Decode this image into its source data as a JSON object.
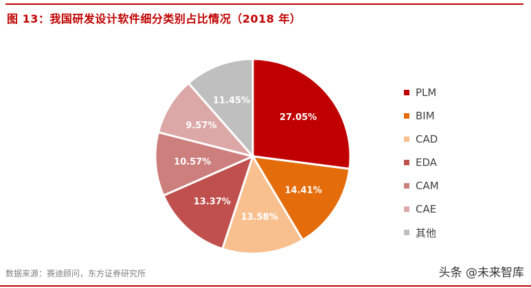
{
  "header": {
    "title": "图 13：我国研发设计软件细分类别占比情况（2018 年）"
  },
  "footer": {
    "source": "数据来源：赛迪顾问，东方证券研究所",
    "watermark": "头条 @未来智库"
  },
  "colors": {
    "accent": "#c00000",
    "PLM": "#c00000",
    "BIM": "#e46c0a",
    "CAD": "#f9c08f",
    "EDA": "#c0504d",
    "CAM": "#cd7f7d",
    "CAE": "#dba8a7",
    "其他": "#bfbfbf"
  },
  "legend": [
    {
      "label": "PLM",
      "color": "#c00000"
    },
    {
      "label": "BIM",
      "color": "#e46c0a"
    },
    {
      "label": "CAD",
      "color": "#f9c08f"
    },
    {
      "label": "EDA",
      "color": "#c0504d"
    },
    {
      "label": "CAM",
      "color": "#cd7f7d"
    },
    {
      "label": "CAE",
      "color": "#dba8a7"
    },
    {
      "label": "其他",
      "color": "#bfbfbf"
    }
  ],
  "chart_data": {
    "type": "pie",
    "title": "图 13：我国研发设计软件细分类别占比情况（2018 年）",
    "categories": [
      "PLM",
      "BIM",
      "CAD",
      "EDA",
      "CAM",
      "CAE",
      "其他"
    ],
    "values": [
      27.05,
      14.41,
      13.58,
      13.37,
      10.57,
      9.57,
      11.45
    ],
    "labels": [
      "27.05%",
      "14.41%",
      "13.58%",
      "13.37%",
      "10.57%",
      "9.57%",
      "11.45%"
    ],
    "colors": [
      "#c00000",
      "#e46c0a",
      "#f9c08f",
      "#c0504d",
      "#cd7f7d",
      "#dba8a7",
      "#bfbfbf"
    ],
    "start_angle_deg": 0,
    "direction": "clockwise",
    "legend_position": "right",
    "source": "数据来源：赛迪顾问，东方证券研究所"
  }
}
